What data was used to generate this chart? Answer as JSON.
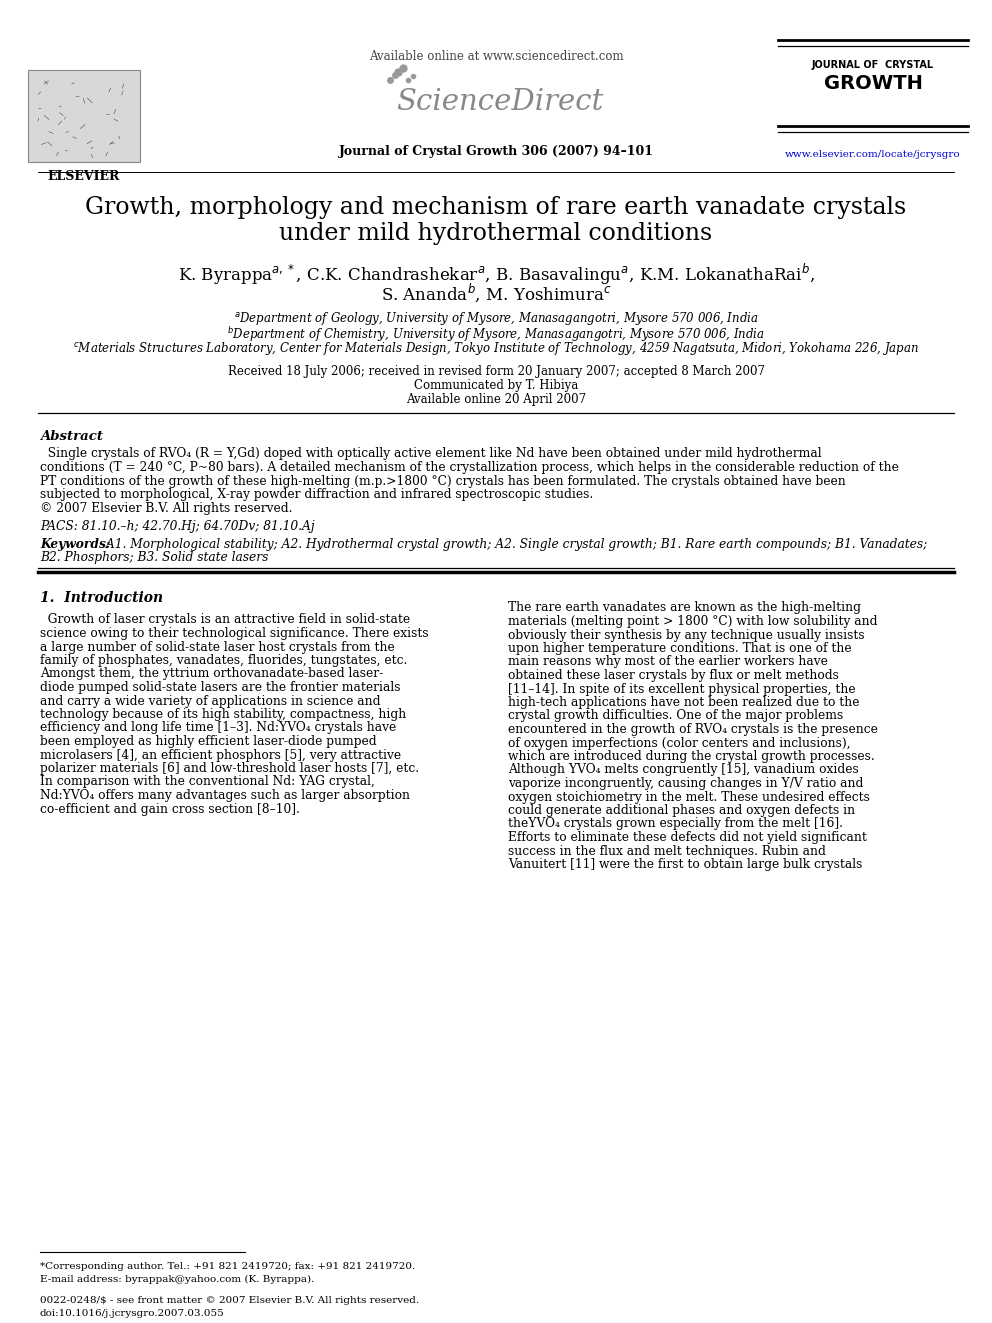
{
  "bg_color": "#ffffff",
  "title_line1": "Growth, morphology and mechanism of rare earth vanadate crystals",
  "title_line2": "under mild hydrothermal conditions",
  "authors_line1": "K. Byrappa$^{a,*}$, C.K. Chandrashekar$^{a}$, B. Basavalingu$^{a}$, K.M. LokanathaRai$^{b}$,",
  "authors_line2": "S. Ananda$^{b}$, M. Yoshimura$^{c}$",
  "affil_a": "$^{a}$Department of Geology, University of Mysore, Manasagangotri, Mysore 570 006, India",
  "affil_b": "$^{b}$Department of Chemistry, University of Mysore, Manasagangotri, Mysore 570 006, India",
  "affil_c": "$^{c}$Materials Structures Laboratory, Center for Materials Design, Tokyo Institute of Technology, 4259 Nagatsuta, Midori, Yokohama 226, Japan",
  "received": "Received 18 July 2006; received in revised form 20 January 2007; accepted 8 March 2007",
  "communicated": "Communicated by T. Hibiya",
  "available": "Available online 20 April 2007",
  "journal_header": "Journal of Crystal Growth 306 (2007) 94–101",
  "available_online": "Available online at www.sciencedirect.com",
  "website": "www.elsevier.com/locate/jcrysgro",
  "elsevier_text": "ELSEVIER",
  "abstract_label": "Abstract",
  "pacs": "PACS: 81.10.–h; 42.70.Hj; 64.70Dv; 81.10.Aj",
  "keywords_label": "Keywords:",
  "keywords_line1": " A1. Morphological stability; A2. Hydrothermal crystal growth; A2. Single crystal growth; B1. Rare earth compounds; B1. Vanadates;",
  "keywords_line2": "B2. Phosphors; B3. Solid state lasers",
  "section1_title": "1.  Introduction",
  "footnote1": "*Corresponding author. Tel.: +91 821 2419720; fax: +91 821 2419720.",
  "footnote2": "E-mail address: byrappak@yahoo.com (K. Byrappa).",
  "footer1": "0022-0248/$ - see front matter © 2007 Elsevier B.V. All rights reserved.",
  "footer2": "doi:10.1016/j.jcrysgro.2007.03.055"
}
